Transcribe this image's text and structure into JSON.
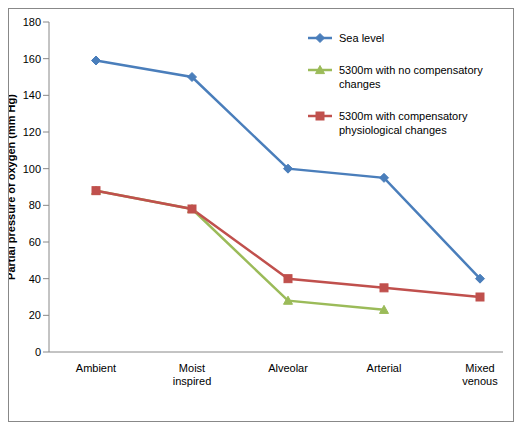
{
  "chart_data": {
    "type": "line",
    "categories": [
      "Ambient",
      "Moist inspired",
      "Alveolar",
      "Arterial",
      "Mixed venous"
    ],
    "ylabel": "Partial pressure of oxygen (mm Hg)",
    "ylim": [
      0,
      180
    ],
    "yticks": [
      0,
      20,
      40,
      60,
      80,
      100,
      120,
      140,
      160,
      180
    ],
    "grid": false,
    "legend": "upper right",
    "series": [
      {
        "name": "Sea level",
        "color": "#4a7ebb",
        "marker": "diamond",
        "values": [
          159,
          150,
          100,
          95,
          40
        ]
      },
      {
        "name": "5300m with no compensatory changes",
        "color": "#9bbb59",
        "marker": "triangle",
        "values": [
          88,
          78,
          28,
          23,
          null
        ]
      },
      {
        "name": "5300m with compensatory physiological changes",
        "color": "#c0504d",
        "marker": "square",
        "values": [
          88,
          78,
          40,
          35,
          30
        ]
      }
    ]
  }
}
